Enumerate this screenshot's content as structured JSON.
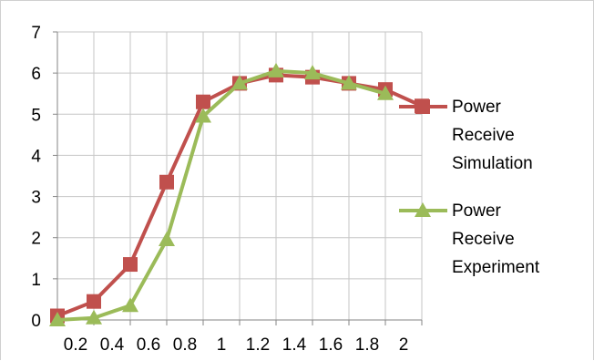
{
  "chart_data": {
    "type": "line",
    "title": "",
    "xlabel": "",
    "ylabel": "",
    "x": [
      0.2,
      0.4,
      0.6,
      0.8,
      1,
      1.2,
      1.4,
      1.6,
      1.8,
      2
    ],
    "xtick_labels": [
      "0.2",
      "0.4",
      "0.6",
      "0.8",
      "1",
      "1.2",
      "1.4",
      "1.6",
      "1.8",
      "2"
    ],
    "ylim": [
      0,
      7
    ],
    "yticks": [
      0,
      1,
      2,
      3,
      4,
      5,
      6,
      7
    ],
    "ytick_labels": [
      "0",
      "1",
      "2",
      "3",
      "4",
      "5",
      "6",
      "7"
    ],
    "grid": "horizontal and vertical",
    "legend_position": "right",
    "series": [
      {
        "name": "Power Receive Simulation",
        "legend_lines": [
          "Power",
          "Receive",
          "Simulation"
        ],
        "marker": "square",
        "color": "#C0504D",
        "x": [
          0.1,
          0.3,
          0.5,
          0.7,
          0.9,
          1.1,
          1.3,
          1.5,
          1.7,
          1.9,
          2.1
        ],
        "values": [
          0.1,
          0.45,
          1.35,
          3.35,
          5.3,
          5.75,
          5.95,
          5.9,
          5.75,
          5.6,
          5.2
        ]
      },
      {
        "name": "Power Receive Experiment",
        "legend_lines": [
          "Power",
          "Receive",
          "Experiment"
        ],
        "marker": "triangle",
        "color": "#9BBB59",
        "x": [
          0.1,
          0.3,
          0.5,
          0.7,
          0.9,
          1.1,
          1.3,
          1.5,
          1.7,
          1.9
        ],
        "values": [
          0.0,
          0.05,
          0.35,
          1.95,
          4.95,
          5.75,
          6.05,
          6.0,
          5.75,
          5.5
        ]
      }
    ]
  }
}
